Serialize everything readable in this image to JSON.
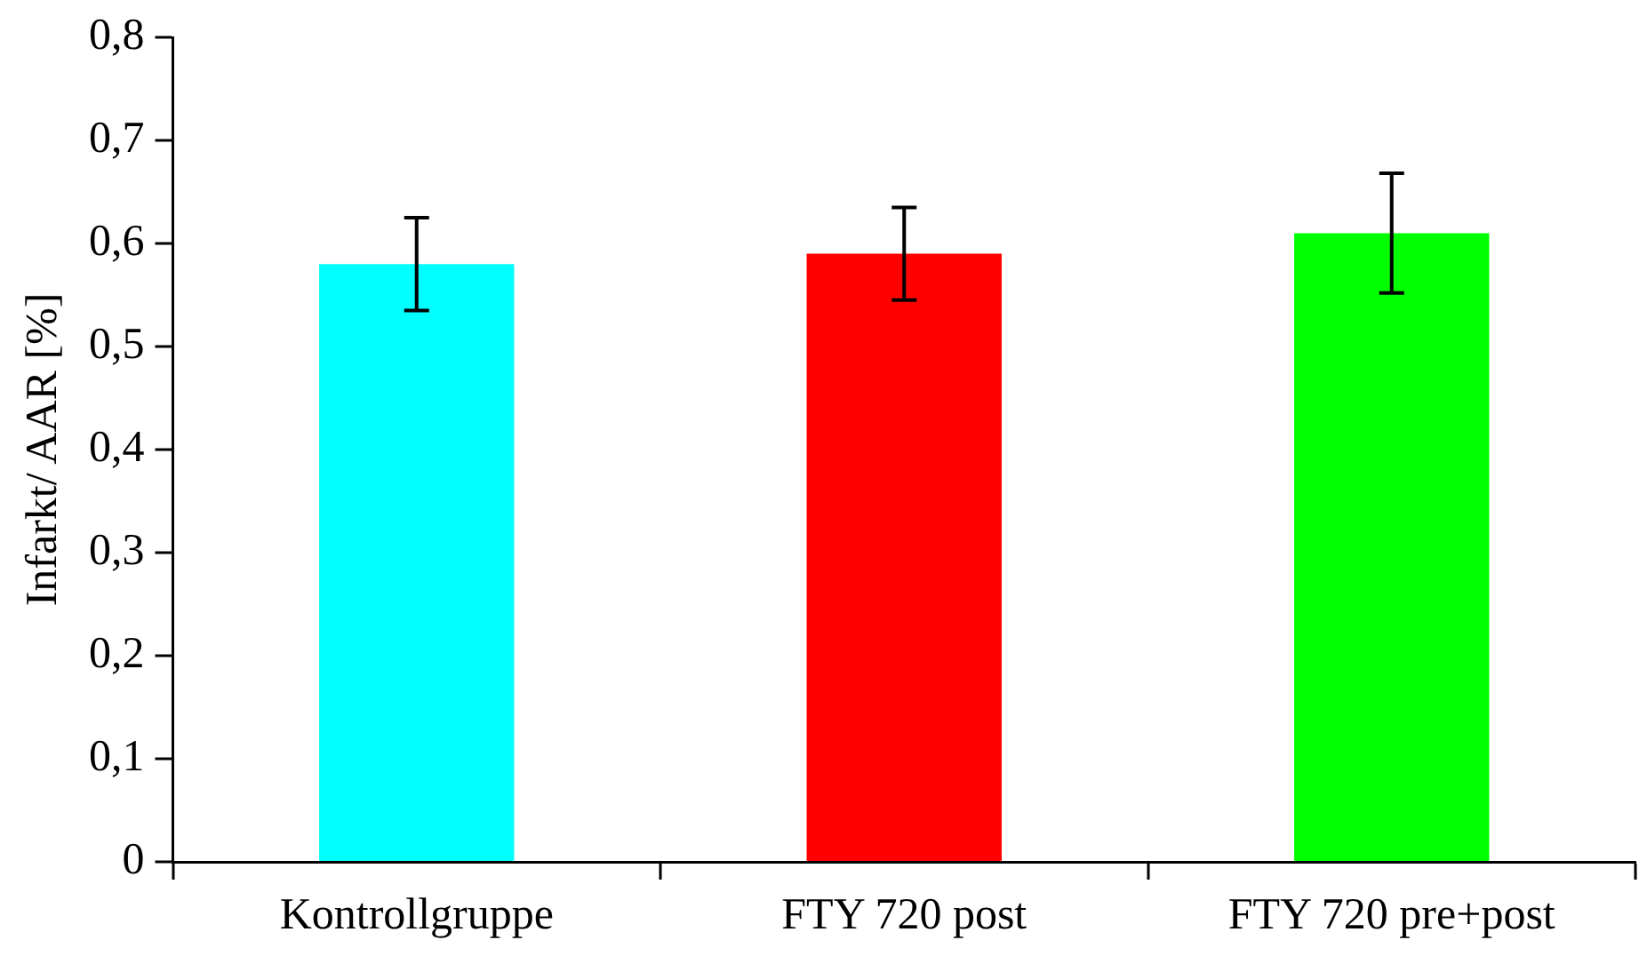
{
  "chart_data": {
    "type": "bar",
    "ylabel": "Infarkt/ AAR [%]",
    "categories": [
      "Kontrollgruppe",
      "FTY 720 post",
      "FTY 720 pre+post"
    ],
    "values": [
      0.58,
      0.59,
      0.61
    ],
    "colors": [
      "#00ffff",
      "#ff0000",
      "#00ff00"
    ],
    "errors": [
      0.045,
      0.045,
      0.058
    ],
    "ylim": [
      0,
      0.8
    ],
    "yticks": [
      {
        "value": 0,
        "label": "0"
      },
      {
        "value": 0.1,
        "label": "0,1"
      },
      {
        "value": 0.2,
        "label": "0,2"
      },
      {
        "value": 0.3,
        "label": "0,3"
      },
      {
        "value": 0.4,
        "label": "0,4"
      },
      {
        "value": 0.5,
        "label": "0,5"
      },
      {
        "value": 0.6,
        "label": "0,6"
      },
      {
        "value": 0.7,
        "label": "0,7"
      },
      {
        "value": 0.8,
        "label": "0,8"
      }
    ],
    "grid": false,
    "legend": false
  }
}
